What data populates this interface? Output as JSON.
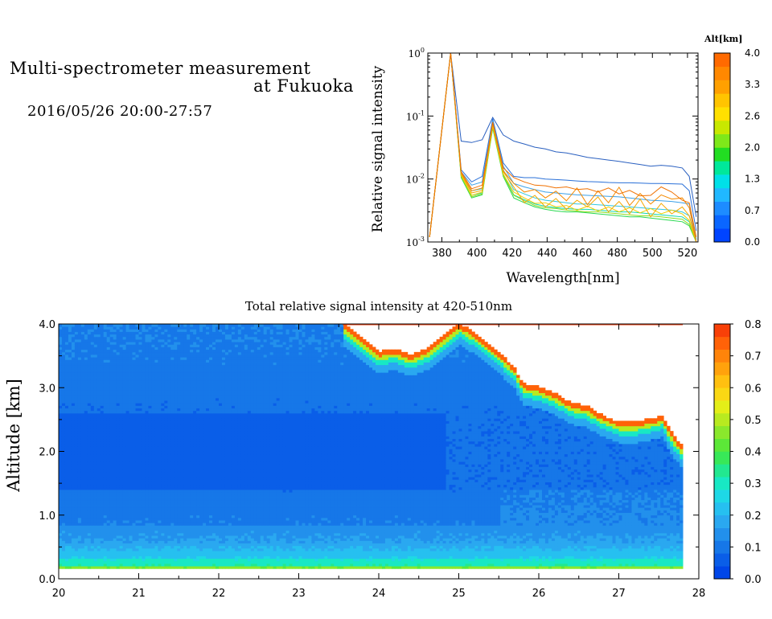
{
  "header": {
    "title_line1": "Multi-spectrometer measurement",
    "title_line2": "at Fukuoka",
    "subtitle": "2016/05/26 20:00-27:57"
  },
  "chart_data": [
    {
      "type": "line",
      "xlabel": "Wavelength[nm]",
      "ylabel": "Relative signal intensity",
      "xlim": [
        372,
        526
      ],
      "ylim": [
        0.001,
        1
      ],
      "yscale": "log",
      "x_ticks": [
        380,
        400,
        420,
        440,
        460,
        480,
        500,
        520
      ],
      "y_ticks": [
        {
          "value": 0.001,
          "mantissa": "10",
          "exp": "-3"
        },
        {
          "value": 0.01,
          "mantissa": "10",
          "exp": "-2"
        },
        {
          "value": 0.1,
          "mantissa": "10",
          "exp": "-1"
        },
        {
          "value": 1,
          "mantissa": "10",
          "exp": "0"
        }
      ],
      "x": [
        373,
        385,
        391,
        397,
        403,
        409,
        415,
        421,
        427,
        433,
        439,
        445,
        451,
        457,
        463,
        469,
        475,
        481,
        487,
        493,
        499,
        505,
        511,
        517,
        521,
        525
      ],
      "colorbar": {
        "title": "Alt[km]",
        "labels": [
          "4.0",
          "3.3",
          "2.6",
          "2.0",
          "1.3",
          "0.7",
          "0.0"
        ],
        "colors": [
          "#0044ff",
          "#0a66ff",
          "#1d8cff",
          "#20b8ff",
          "#00e0e8",
          "#00e89a",
          "#22dd22",
          "#7ee81a",
          "#c8e800",
          "#ffe000",
          "#ffc400",
          "#ffa000",
          "#ff8800",
          "#ff6a00"
        ]
      },
      "series": [
        {
          "color": "#2a60c0",
          "values": [
            0.0012,
            1.0,
            0.04,
            0.038,
            0.042,
            0.095,
            0.05,
            0.04,
            0.036,
            0.032,
            0.03,
            0.027,
            0.026,
            0.024,
            0.022,
            0.021,
            0.02,
            0.019,
            0.018,
            0.017,
            0.016,
            0.0165,
            0.016,
            0.015,
            0.011,
            0.0025
          ]
        },
        {
          "color": "#2a70d8",
          "values": [
            0.0012,
            1.0,
            0.014,
            0.009,
            0.011,
            0.09,
            0.018,
            0.011,
            0.0105,
            0.0105,
            0.01,
            0.0098,
            0.0096,
            0.0093,
            0.0091,
            0.009,
            0.0088,
            0.0087,
            0.0087,
            0.0086,
            0.0085,
            0.0085,
            0.0084,
            0.0083,
            0.0065,
            0.0015
          ]
        },
        {
          "color": "#3aa0e8",
          "values": [
            0.0012,
            1.0,
            0.013,
            0.008,
            0.009,
            0.085,
            0.016,
            0.0085,
            0.0075,
            0.0068,
            0.0062,
            0.006,
            0.0058,
            0.0056,
            0.0055,
            0.0054,
            0.0053,
            0.0052,
            0.005,
            0.0048,
            0.0046,
            0.0045,
            0.0044,
            0.0042,
            0.004,
            0.0011
          ]
        },
        {
          "color": "#30c8e0",
          "values": [
            0.0012,
            1.0,
            0.012,
            0.0065,
            0.007,
            0.075,
            0.014,
            0.0068,
            0.0058,
            0.005,
            0.0046,
            0.0044,
            0.0042,
            0.004,
            0.004,
            0.0039,
            0.0038,
            0.0037,
            0.0036,
            0.0035,
            0.0034,
            0.0033,
            0.0032,
            0.003,
            0.0026,
            0.0011
          ]
        },
        {
          "color": "#10d8b0",
          "values": [
            0.0012,
            1.0,
            0.011,
            0.0055,
            0.006,
            0.068,
            0.012,
            0.0056,
            0.0047,
            0.004,
            0.0037,
            0.0035,
            0.0034,
            0.0033,
            0.0033,
            0.0032,
            0.0031,
            0.003,
            0.003,
            0.0029,
            0.0028,
            0.0027,
            0.0026,
            0.0025,
            0.0021,
            0.001
          ]
        },
        {
          "color": "#28d850",
          "values": [
            0.0012,
            1.0,
            0.0105,
            0.005,
            0.0056,
            0.064,
            0.011,
            0.005,
            0.0042,
            0.0036,
            0.0033,
            0.0031,
            0.003,
            0.003,
            0.0029,
            0.0028,
            0.0027,
            0.0026,
            0.0025,
            0.0025,
            0.0024,
            0.0023,
            0.0022,
            0.0021,
            0.0018,
            0.001
          ]
        },
        {
          "color": "#8fdc20",
          "values": [
            0.0012,
            1.0,
            0.011,
            0.0052,
            0.0058,
            0.066,
            0.0115,
            0.0055,
            0.0045,
            0.0038,
            0.0035,
            0.0034,
            0.0032,
            0.0031,
            0.003,
            0.003,
            0.0029,
            0.0028,
            0.0027,
            0.0026,
            0.0026,
            0.0025,
            0.0024,
            0.0023,
            0.0019,
            0.001
          ]
        },
        {
          "color": "#f0d000",
          "values": [
            0.0012,
            1.0,
            0.0115,
            0.0055,
            0.0062,
            0.07,
            0.012,
            0.0062,
            0.005,
            0.0041,
            0.0042,
            0.0036,
            0.0038,
            0.0032,
            0.0037,
            0.0031,
            0.0036,
            0.003,
            0.0035,
            0.0029,
            0.0034,
            0.0028,
            0.0032,
            0.0028,
            0.0022,
            0.001
          ]
        },
        {
          "color": "#f5a800",
          "values": [
            0.0012,
            1.0,
            0.012,
            0.006,
            0.0066,
            0.073,
            0.013,
            0.0075,
            0.0042,
            0.0055,
            0.0036,
            0.0049,
            0.0033,
            0.0046,
            0.0036,
            0.0052,
            0.003,
            0.0044,
            0.0028,
            0.0048,
            0.0025,
            0.0041,
            0.0028,
            0.0036,
            0.0026,
            0.001
          ]
        },
        {
          "color": "#f58a00",
          "values": [
            0.0012,
            1.0,
            0.0125,
            0.0065,
            0.0072,
            0.078,
            0.0135,
            0.0085,
            0.0062,
            0.0068,
            0.005,
            0.0064,
            0.0045,
            0.0072,
            0.0039,
            0.0065,
            0.0042,
            0.0074,
            0.0038,
            0.0059,
            0.004,
            0.0056,
            0.0048,
            0.005,
            0.0035,
            0.001
          ]
        },
        {
          "color": "#f07000",
          "values": [
            0.0012,
            1.0,
            0.013,
            0.007,
            0.008,
            0.08,
            0.015,
            0.0105,
            0.009,
            0.008,
            0.0078,
            0.0072,
            0.0075,
            0.0068,
            0.007,
            0.0062,
            0.0072,
            0.0058,
            0.0066,
            0.0054,
            0.0055,
            0.0075,
            0.0062,
            0.0046,
            0.0042,
            0.0012
          ]
        }
      ]
    },
    {
      "type": "heatmap",
      "title": "Total relative signal intensity at 420-510nm",
      "xlabel": "",
      "ylabel": "Altitude [km]",
      "xlim": [
        20,
        28
      ],
      "ylim": [
        0.0,
        4.0
      ],
      "x_ticks": [
        "20",
        "21",
        "22",
        "23",
        "24",
        "25",
        "26",
        "27",
        "28"
      ],
      "y_ticks": [
        "0.0",
        "1.0",
        "2.0",
        "3.0",
        "4.0"
      ],
      "data_x_end": 27.8,
      "cloud_base_profile": {
        "x": [
          20.0,
          23.55,
          23.7,
          23.85,
          24.0,
          24.2,
          24.4,
          24.6,
          24.75,
          25.0,
          25.2,
          25.35,
          25.5,
          25.7,
          25.8,
          26.0,
          26.2,
          26.4,
          26.6,
          26.8,
          27.0,
          27.2,
          27.4,
          27.55,
          27.65,
          27.8
        ],
        "altitude_km": [
          4.0,
          4.0,
          3.85,
          3.7,
          3.55,
          3.6,
          3.5,
          3.6,
          3.75,
          4.0,
          3.85,
          3.7,
          3.55,
          3.3,
          3.05,
          3.0,
          2.9,
          2.75,
          2.7,
          2.55,
          2.45,
          2.45,
          2.5,
          2.55,
          2.3,
          2.05
        ]
      },
      "colorbar": {
        "labels": [
          "0.8",
          "0.7",
          "0.6",
          "0.5",
          "0.4",
          "0.3",
          "0.2",
          "0.1",
          "0.0"
        ],
        "range": [
          0.0,
          0.8
        ],
        "colors": [
          "#0046e8",
          "#0a5ee8",
          "#1677e8",
          "#2290ec",
          "#2aa8f0",
          "#26c0f0",
          "#1ed8e6",
          "#18e8c4",
          "#22e890",
          "#38e858",
          "#5ce838",
          "#8ae82c",
          "#b8ea20",
          "#e4ee18",
          "#fad814",
          "#ffc010",
          "#ffa20c",
          "#ff840a",
          "#ff6208",
          "#f84008"
        ]
      }
    }
  ]
}
